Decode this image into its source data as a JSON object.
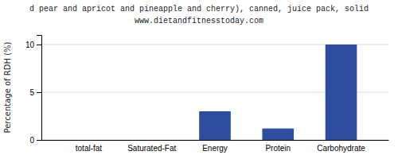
{
  "chart_data": {
    "type": "bar",
    "title": "d pear and apricot and pineapple and cherry), canned, juice pack, solid",
    "subtitle": "www.dietandfitnesstoday.com",
    "categories": [
      "total-fat",
      "Saturated-Fat",
      "Energy",
      "Protein",
      "Carbohydrate"
    ],
    "values": [
      0.0,
      0.0,
      3.0,
      1.2,
      10.0
    ],
    "color": "#2e4d9e",
    "ylabel": "Percentage of RDH (%)",
    "ylim": [
      0,
      11
    ],
    "yticks": [
      0,
      5,
      10
    ],
    "grid": true
  }
}
